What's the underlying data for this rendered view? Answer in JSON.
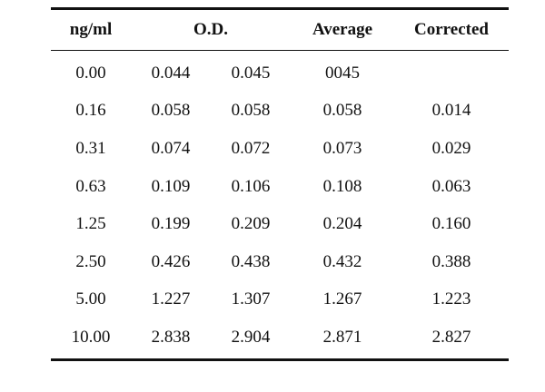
{
  "table": {
    "headers": {
      "concentration": "ng/ml",
      "od": "O.D.",
      "average": "Average",
      "corrected": "Corrected"
    },
    "rows": [
      {
        "conc": "0.00",
        "od1": "0.044",
        "od2": "0.045",
        "avg": "0045",
        "corr": ""
      },
      {
        "conc": "0.16",
        "od1": "0.058",
        "od2": "0.058",
        "avg": "0.058",
        "corr": "0.014"
      },
      {
        "conc": "0.31",
        "od1": "0.074",
        "od2": "0.072",
        "avg": "0.073",
        "corr": "0.029"
      },
      {
        "conc": "0.63",
        "od1": "0.109",
        "od2": "0.106",
        "avg": "0.108",
        "corr": "0.063"
      },
      {
        "conc": "1.25",
        "od1": "0.199",
        "od2": "0.209",
        "avg": "0.204",
        "corr": "0.160"
      },
      {
        "conc": "2.50",
        "od1": "0.426",
        "od2": "0.438",
        "avg": "0.432",
        "corr": "0.388"
      },
      {
        "conc": "5.00",
        "od1": "1.227",
        "od2": "1.307",
        "avg": "1.267",
        "corr": "1.223"
      },
      {
        "conc": "10.00",
        "od1": "2.838",
        "od2": "2.904",
        "avg": "2.871",
        "corr": "2.827"
      }
    ]
  }
}
